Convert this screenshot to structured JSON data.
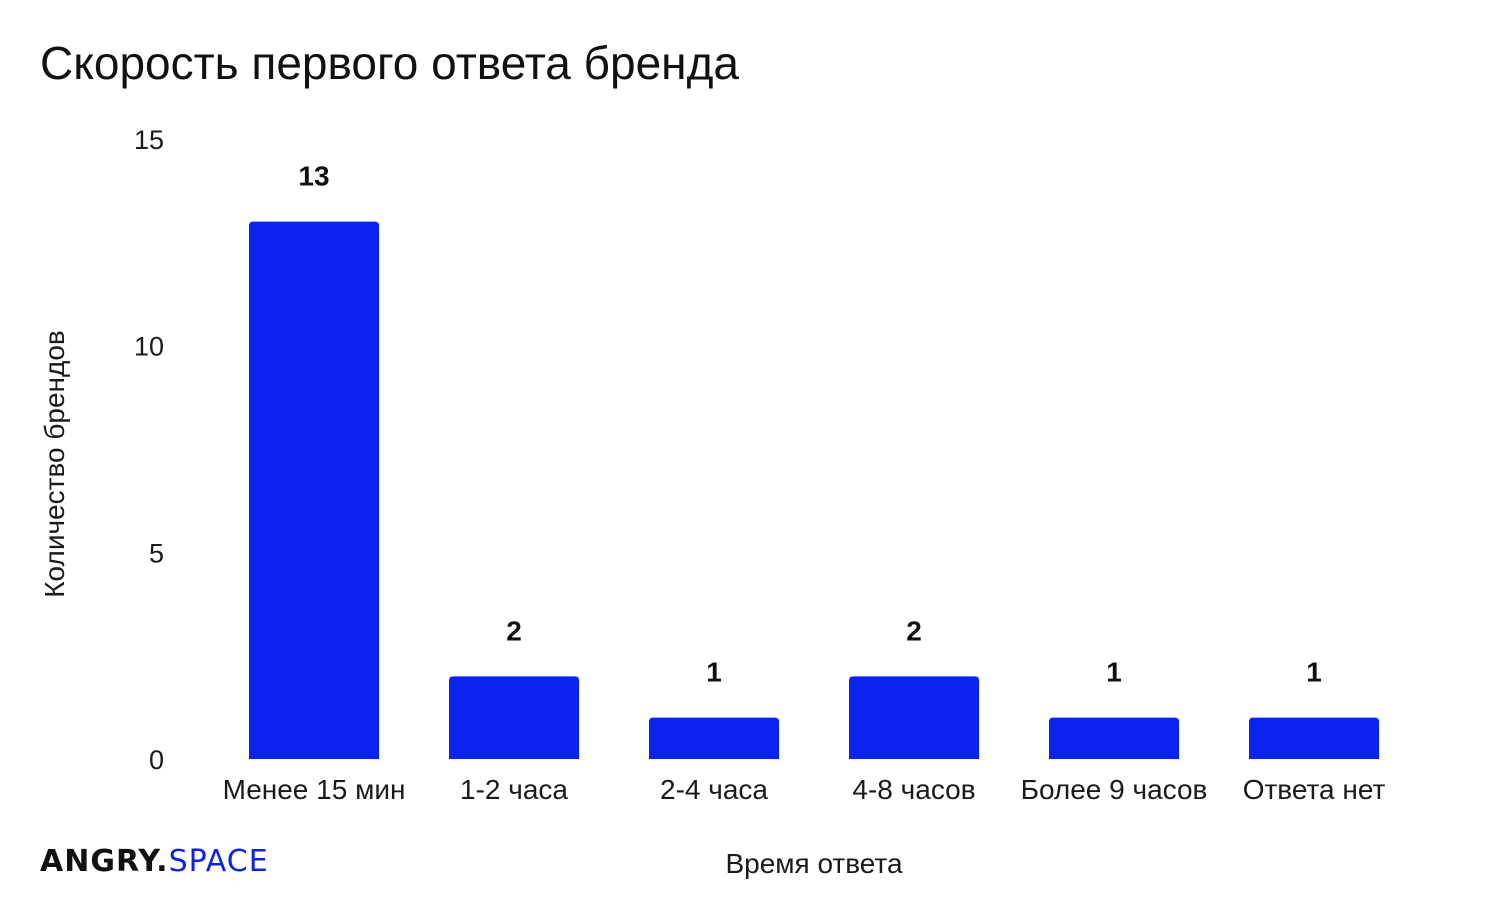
{
  "chart_data": {
    "type": "bar",
    "title": "Скорость первого ответа бренда",
    "xlabel": "Время ответа",
    "ylabel": "Количество брендов",
    "categories": [
      "Менее 15 мин",
      "1-2 часа",
      "2-4 часа",
      "4-8 часов",
      "Более 9 часов",
      "Ответа нет"
    ],
    "values": [
      13,
      2,
      1,
      2,
      1,
      1
    ],
    "ylim": [
      0,
      15
    ],
    "yticks": [
      0,
      5,
      10,
      15
    ],
    "data_labels": true,
    "grid": false,
    "legend": "none",
    "bar_color": "#0a23f0"
  },
  "brand": {
    "main": "ANGRY.",
    "sub": "SPACE"
  }
}
